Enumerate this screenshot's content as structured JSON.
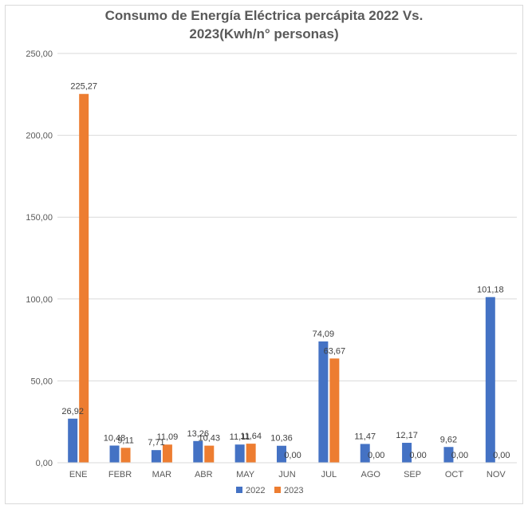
{
  "chart_data": {
    "type": "bar",
    "title_line1": "Consumo de Energía Eléctrica percápita 2022 Vs.",
    "title_line2": "2023(Kwh/n° personas)",
    "categories": [
      "ENE",
      "FEBR",
      "MAR",
      "ABR",
      "MAY",
      "JUN",
      "JUL",
      "AGO",
      "SEP",
      "OCT",
      "NOV"
    ],
    "series": [
      {
        "name": "2022",
        "color": "#4472C4",
        "values": [
          26.92,
          10.48,
          7.71,
          13.26,
          11.11,
          10.36,
          74.09,
          11.47,
          12.17,
          9.62,
          101.18
        ],
        "labels": [
          "26,92",
          "10,48",
          "7,71",
          "13,26",
          "11,11",
          "10,36",
          "74,09",
          "11,47",
          "12,17",
          "9,62",
          "101,18"
        ]
      },
      {
        "name": "2023",
        "color": "#ED7D31",
        "values": [
          225.27,
          9.11,
          11.09,
          10.43,
          11.64,
          0.0,
          63.67,
          0.0,
          0.0,
          0.0,
          0.0
        ],
        "labels": [
          "225,27",
          "9,11",
          "11,09",
          "10,43",
          "11,64",
          "0,00",
          "63,67",
          "0,00",
          "0,00",
          "0,00",
          "0,00"
        ]
      }
    ],
    "ylim": [
      0,
      250
    ],
    "yticks": [
      "0,00",
      "50,00",
      "100,00",
      "150,00",
      "200,00",
      "250,00"
    ],
    "grid": true,
    "legend_position": "bottom"
  }
}
